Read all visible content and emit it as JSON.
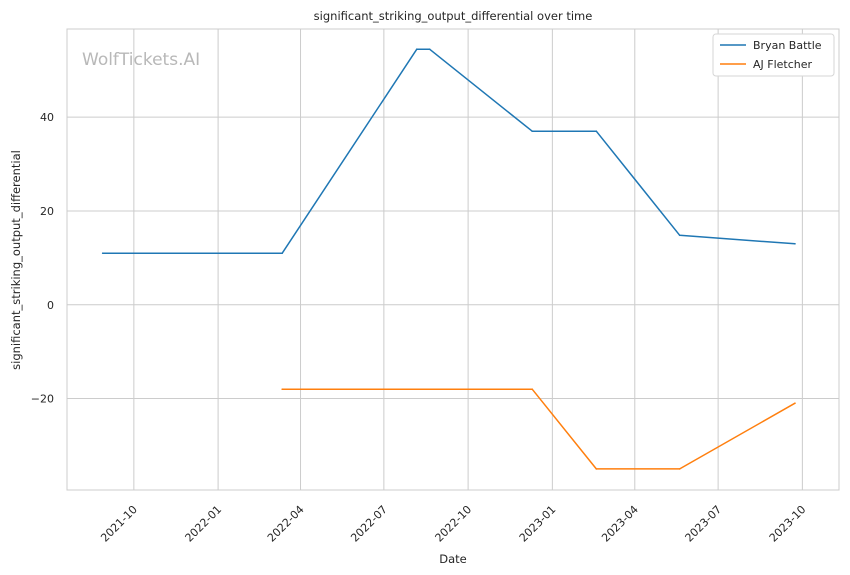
{
  "chart_data": {
    "type": "line",
    "title": "significant_striking_output_differential over time",
    "xlabel": "Date",
    "ylabel": "significant_striking_output_differential",
    "watermark": "WolfTickets.AI",
    "x_ticks": [
      "2021-10",
      "2022-01",
      "2022-04",
      "2022-07",
      "2022-10",
      "2023-01",
      "2023-04",
      "2023-07",
      "2023-10"
    ],
    "y_ticks": [
      -20,
      0,
      20,
      40
    ],
    "xlim": [
      "2021-07-20",
      "2023-11-10"
    ],
    "ylim": [
      -39.5,
      58.8
    ],
    "grid": true,
    "legend_position": "top-right",
    "series": [
      {
        "name": "Bryan Battle",
        "color": "#1f77b4",
        "points": [
          [
            "2021-08-28",
            11.0
          ],
          [
            "2022-03-12",
            11.0
          ],
          [
            "2022-08-06",
            54.5
          ],
          [
            "2022-08-20",
            54.5
          ],
          [
            "2022-12-10",
            37.0
          ],
          [
            "2023-02-18",
            37.0
          ],
          [
            "2023-05-20",
            14.8
          ],
          [
            "2023-09-23",
            13.0
          ]
        ]
      },
      {
        "name": "AJ Fletcher",
        "color": "#ff7f0e",
        "points": [
          [
            "2022-03-12",
            -18.0
          ],
          [
            "2022-12-10",
            -18.0
          ],
          [
            "2023-02-18",
            -35.0
          ],
          [
            "2023-05-20",
            -35.0
          ],
          [
            "2023-09-23",
            -21.0
          ]
        ]
      }
    ]
  }
}
